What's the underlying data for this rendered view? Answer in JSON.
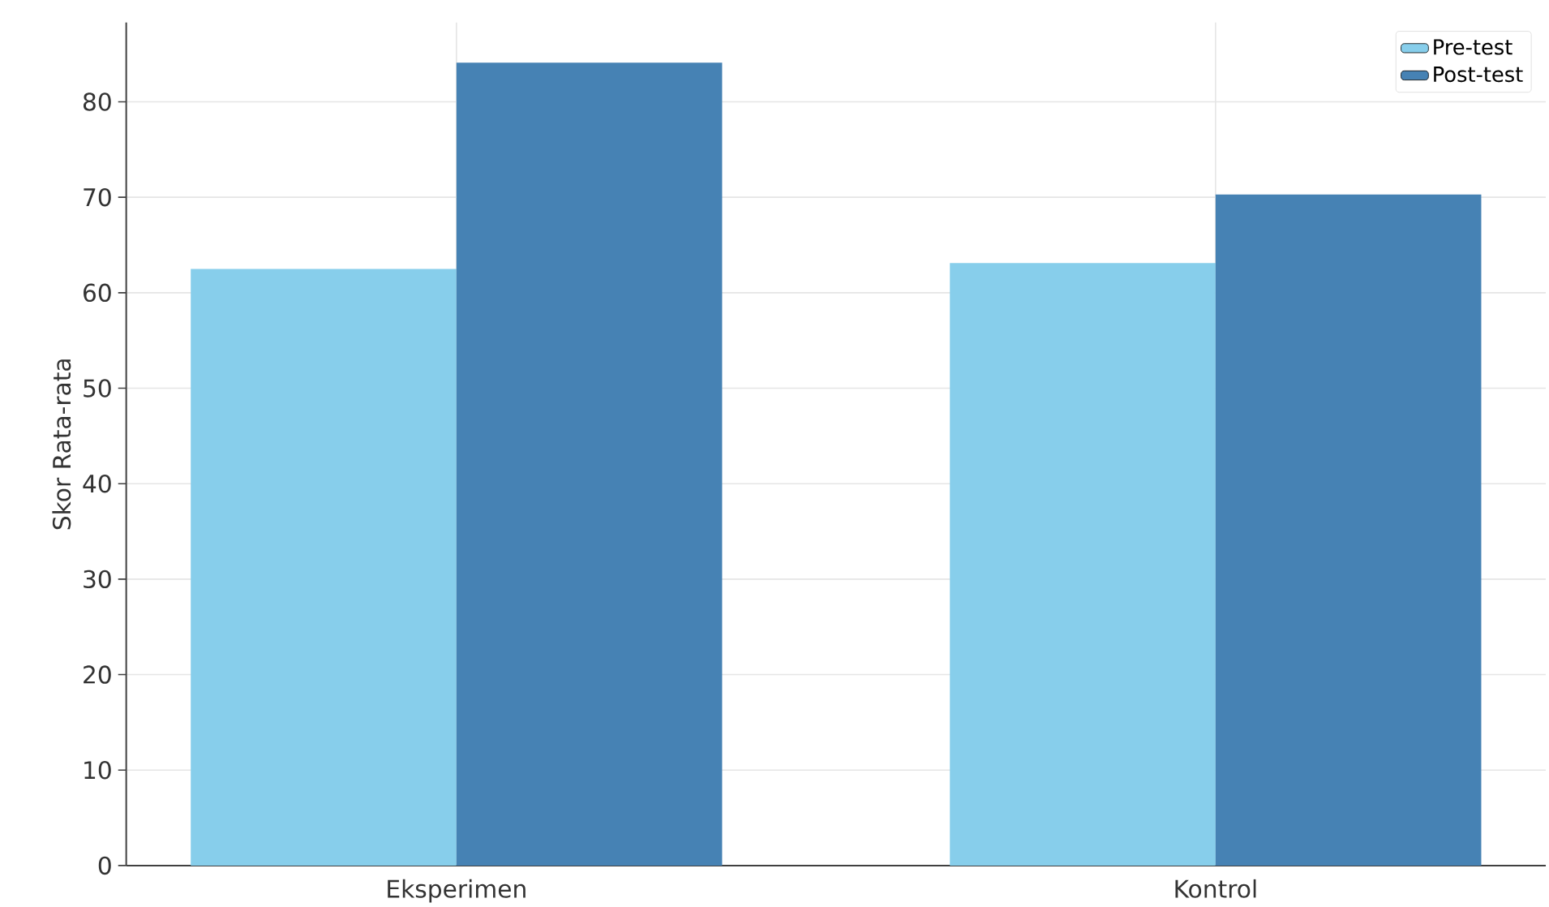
{
  "chart_data": {
    "type": "bar",
    "ylabel": "Skor Rata-rata",
    "categories": [
      "Eksperimen",
      "Kontrol"
    ],
    "series": [
      {
        "name": "Pre-test",
        "color": "#87ceeb",
        "values": [
          62.5,
          63.1
        ]
      },
      {
        "name": "Post-test",
        "color": "#4682b4",
        "values": [
          84.1,
          70.3
        ]
      }
    ],
    "ylim": [
      0,
      88.3
    ],
    "yticks": [
      0,
      10,
      20,
      30,
      40,
      50,
      60,
      70,
      80
    ],
    "grid": true,
    "legend": "top right"
  }
}
